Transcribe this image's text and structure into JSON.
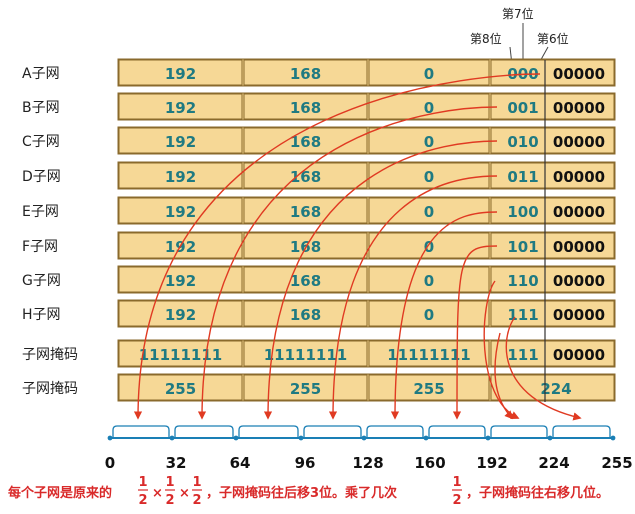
{
  "notes": {
    "bit7": "第7位",
    "bit8": "第8位",
    "bit6": "第6位"
  },
  "rows": [
    {
      "label": "A子网",
      "o1": "192",
      "o2": "168",
      "o3": "0",
      "sub": "000",
      "host": "00000"
    },
    {
      "label": "B子网",
      "o1": "192",
      "o2": "168",
      "o3": "0",
      "sub": "001",
      "host": "00000"
    },
    {
      "label": "C子网",
      "o1": "192",
      "o2": "168",
      "o3": "0",
      "sub": "010",
      "host": "00000"
    },
    {
      "label": "D子网",
      "o1": "192",
      "o2": "168",
      "o3": "0",
      "sub": "011",
      "host": "00000"
    },
    {
      "label": "E子网",
      "o1": "192",
      "o2": "168",
      "o3": "0",
      "sub": "100",
      "host": "00000"
    },
    {
      "label": "F子网",
      "o1": "192",
      "o2": "168",
      "o3": "0",
      "sub": "101",
      "host": "00000"
    },
    {
      "label": "G子网",
      "o1": "192",
      "o2": "168",
      "o3": "0",
      "sub": "110",
      "host": "00000"
    },
    {
      "label": "H子网",
      "o1": "192",
      "o2": "168",
      "o3": "0",
      "sub": "111",
      "host": "00000"
    }
  ],
  "mask_bin": {
    "label": "子网掩码",
    "o1": "11111111",
    "o2": "11111111",
    "o3": "11111111",
    "sub": "111",
    "host": "00000"
  },
  "mask_dec": {
    "label": "子网掩码",
    "o1": "255",
    "o2": "255",
    "o3": "255",
    "o4": "224"
  },
  "axis_ticks": [
    "0",
    "32",
    "64",
    "96",
    "128",
    "160",
    "192",
    "224",
    "255"
  ],
  "caption": {
    "part1": "每个子网是原来的",
    "half_num": "1",
    "half_den": "2",
    "times": "×",
    "part2": "，子网掩码往后移3位。乘了几次",
    "part3": "，子网掩码往右移几位。"
  },
  "colors": {
    "cell": "#f6d896",
    "octet_text": "#1f7a82",
    "arrow": "#e03a22",
    "caption": "#d92a2a",
    "axis": "#1a7fb5"
  }
}
